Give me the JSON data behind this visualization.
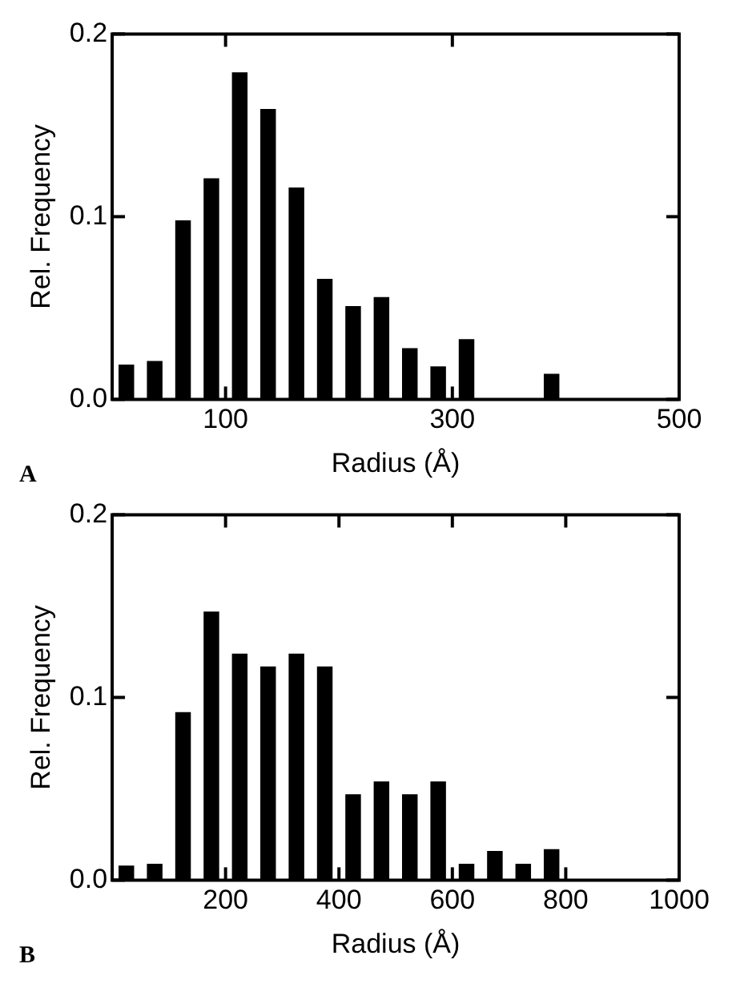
{
  "chart_data": [
    {
      "type": "histogram",
      "xlabel": "Radius (Å)",
      "ylabel": "Rel. Frequency",
      "annotations": [
        "A"
      ],
      "color": "#000000",
      "bins": [
        0,
        25,
        50,
        75,
        100,
        125,
        150,
        175,
        200,
        225,
        250,
        275,
        300,
        325,
        350,
        375,
        400
      ],
      "values": [
        0.019,
        0.021,
        0.098,
        0.121,
        0.179,
        0.159,
        0.116,
        0.066,
        0.051,
        0.056,
        0.028,
        0.018,
        0.033,
        0,
        0,
        0.014
      ],
      "xlim": [
        0,
        500
      ],
      "xticks": [
        100,
        300,
        500
      ],
      "ylim": [
        0,
        0.2
      ],
      "yticks": [
        {
          "value": 0,
          "label": "0.0"
        },
        {
          "value": 0.1,
          "label": "0.1"
        },
        {
          "value": 0.2,
          "label": "0.2"
        }
      ],
      "grid": false,
      "legend": false
    },
    {
      "type": "histogram",
      "xlabel": "Radius (Å)",
      "ylabel": "Rel. Frequency",
      "annotations": [
        "B"
      ],
      "color": "#000000",
      "bins": [
        0,
        50,
        100,
        150,
        200,
        250,
        300,
        350,
        400,
        450,
        500,
        550,
        600,
        650,
        700,
        750,
        800
      ],
      "values": [
        0.008,
        0.009,
        0.092,
        0.147,
        0.124,
        0.117,
        0.124,
        0.117,
        0.047,
        0.054,
        0.047,
        0.054,
        0.009,
        0.016,
        0.009,
        0.017
      ],
      "xlim": [
        0,
        1000
      ],
      "xticks": [
        200,
        400,
        600,
        800,
        1000
      ],
      "ylim": [
        0,
        0.2
      ],
      "yticks": [
        {
          "value": 0,
          "label": "0.0"
        },
        {
          "value": 0.1,
          "label": "0.1"
        },
        {
          "value": 0.2,
          "label": "0.2"
        }
      ],
      "grid": false,
      "legend": false
    }
  ]
}
